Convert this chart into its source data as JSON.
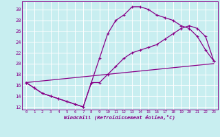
{
  "bg_color": "#c8eef0",
  "grid_color": "#ffffff",
  "line_color": "#880088",
  "xlim": [
    -0.5,
    23.5
  ],
  "ylim": [
    11.5,
    31.5
  ],
  "yticks": [
    12,
    14,
    16,
    18,
    20,
    22,
    24,
    26,
    28,
    30
  ],
  "xticks": [
    0,
    1,
    2,
    3,
    4,
    5,
    6,
    7,
    8,
    9,
    10,
    11,
    12,
    13,
    14,
    15,
    16,
    17,
    18,
    19,
    20,
    21,
    22,
    23
  ],
  "xlabel": "Windchill (Refroidissement éolien,°C)",
  "series1_x": [
    0,
    1,
    2,
    3,
    4,
    5,
    6,
    7,
    8,
    9,
    10,
    11,
    12,
    13,
    14,
    15,
    16,
    17,
    18,
    19,
    20,
    21,
    22,
    23
  ],
  "series1_y": [
    16.5,
    15.5,
    14.5,
    14.0,
    13.5,
    13.0,
    12.5,
    12.0,
    16.5,
    21.0,
    25.5,
    28.0,
    29.0,
    30.5,
    30.5,
    30.0,
    29.0,
    28.5,
    28.0,
    27.0,
    26.5,
    25.0,
    22.5,
    20.5
  ],
  "series2_x": [
    0,
    1,
    2,
    3,
    4,
    5,
    6,
    7,
    8,
    9,
    10,
    11,
    12,
    13,
    14,
    15,
    16,
    17,
    18,
    19,
    20,
    21,
    22,
    23
  ],
  "series2_y": [
    16.5,
    15.5,
    14.5,
    14.0,
    13.5,
    13.0,
    12.5,
    12.0,
    16.5,
    16.5,
    18.0,
    19.5,
    21.0,
    22.0,
    22.5,
    23.0,
    23.5,
    24.5,
    25.5,
    26.5,
    27.0,
    26.5,
    25.0,
    20.5
  ],
  "series3_x": [
    0,
    23
  ],
  "series3_y": [
    16.5,
    20.0
  ]
}
